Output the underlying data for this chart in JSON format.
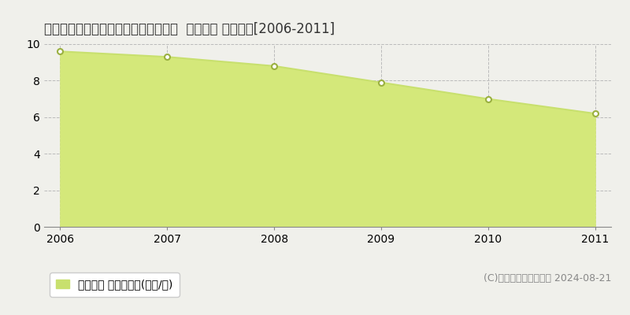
{
  "title": "宮城県登米市南方町鴻ノ木８３番１外  地価公示 地価推移[2006-2011]",
  "years": [
    2006,
    2007,
    2008,
    2009,
    2010,
    2011
  ],
  "values": [
    9.6,
    9.3,
    8.8,
    7.9,
    7.0,
    6.2
  ],
  "ylim": [
    0,
    10
  ],
  "yticks": [
    0,
    2,
    4,
    6,
    8,
    10
  ],
  "line_color": "#c8e06e",
  "fill_color": "#d4e87a",
  "marker_color": "#ffffff",
  "marker_edge_color": "#9ab040",
  "bg_color": "#f0f0eb",
  "plot_bg_color": "#f0f0eb",
  "grid_color": "#bbbbbb",
  "legend_label": "地価公示 平均坪単価(万円/坪)",
  "legend_marker_color": "#c8e06e",
  "copyright_text": "(C)土地価格ドットコム 2024-08-21",
  "title_fontsize": 12,
  "tick_fontsize": 10,
  "legend_fontsize": 10,
  "copyright_fontsize": 9
}
